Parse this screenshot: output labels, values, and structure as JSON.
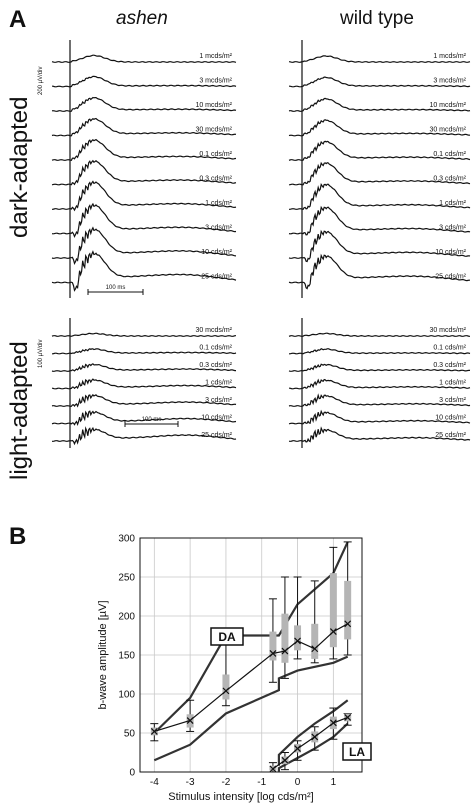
{
  "figure": {
    "panel_a_letter": "A",
    "panel_b_letter": "B",
    "col_ashen": "ashen",
    "col_wildtype": "wild type",
    "row_dark": "dark-adapted",
    "row_light": "light-adapted"
  },
  "erg": {
    "dark": {
      "scale_label": "200 µV/div",
      "time_scale_label": "100 ms",
      "intensities": [
        "1 mcds/m²",
        "3 mcds/m²",
        "10 mcds/m²",
        "30 mcds/m²",
        "0.1 cds/m²",
        "0.3 cds/m²",
        "1 cds/m²",
        "3 cds/m²",
        "10 cds/m²",
        "25 cds/m²"
      ]
    },
    "light": {
      "scale_label": "100 µV/div",
      "time_scale_label": "100 ms",
      "intensities": [
        "30 mcds/m²",
        "0.1 cds/m²",
        "0.3 cds/m²",
        "1 cds/m²",
        "3 cds/m²",
        "10 cds/m²",
        "25 cds/m²"
      ]
    }
  },
  "chart_data": {
    "type": "line",
    "title": "",
    "xlabel": "Stimulus intensity [log cds/m²]",
    "ylabel": "b-wave amplitude [µV]",
    "xlim": [
      -4.4,
      1.8
    ],
    "ylim": [
      0,
      300
    ],
    "xticks": [
      -4,
      -3,
      -2,
      -1,
      0,
      1
    ],
    "yticks": [
      0,
      50,
      100,
      150,
      200,
      250,
      300
    ],
    "grid": true,
    "annotations": [
      "DA",
      "LA"
    ],
    "series": [
      {
        "group": "DA",
        "x": [
          -4,
          -3,
          -2,
          -0.52,
          -0.52,
          0,
          0.48,
          1,
          1.4
        ],
        "median": [
          52,
          66,
          104,
          152,
          155,
          168,
          158,
          180,
          190
        ],
        "q1": [
          47,
          57,
          93,
          143,
          140,
          156,
          145,
          160,
          170
        ],
        "q3": [
          57,
          74,
          125,
          180,
          203,
          188,
          190,
          255,
          245
        ],
        "whisker_low": [
          40,
          52,
          85,
          115,
          120,
          145,
          140,
          145,
          150
        ],
        "whisker_high": [
          62,
          92,
          170,
          222,
          250,
          250,
          245,
          288,
          295
        ],
        "band_low": [
          15,
          35,
          75,
          105,
          120,
          130,
          null,
          140,
          148
        ],
        "band_high": [
          50,
          95,
          175,
          175,
          175,
          215,
          null,
          255,
          295
        ]
      },
      {
        "group": "LA",
        "x": [
          -0.52,
          -0.52,
          0,
          0.48,
          1,
          1.4
        ],
        "median": [
          4,
          15,
          30,
          45,
          63,
          70
        ],
        "q1": [
          2,
          10,
          25,
          38,
          55,
          65
        ],
        "q3": [
          8,
          20,
          36,
          52,
          71,
          75
        ],
        "whisker_low": [
          0,
          3,
          15,
          28,
          42,
          60
        ],
        "whisker_high": [
          12,
          25,
          40,
          58,
          82,
          75
        ],
        "band_low": [
          0,
          5,
          18,
          30,
          45,
          62
        ],
        "band_high": [
          8,
          22,
          45,
          62,
          78,
          92
        ]
      }
    ]
  }
}
